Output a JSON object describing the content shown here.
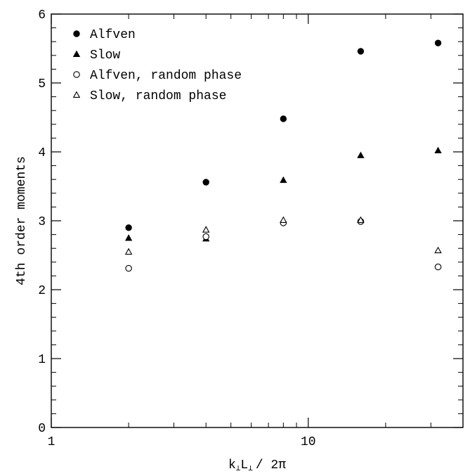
{
  "chart_data": {
    "type": "scatter",
    "xscale": "log",
    "xlim": [
      1,
      40
    ],
    "ylim": [
      0,
      6
    ],
    "grid": false,
    "legend_position": "top-left",
    "xlabel": {
      "k": "k",
      "sub1": "⊥",
      "L": "L",
      "sub2": "⊥",
      "rest": "/ 2π"
    },
    "ylabel": "4th order moments",
    "x_ticks": [
      {
        "value": 1,
        "label": "1"
      },
      {
        "value": 10,
        "label": "10"
      }
    ],
    "y_ticks": [
      {
        "value": 0,
        "label": "0"
      },
      {
        "value": 1,
        "label": "1"
      },
      {
        "value": 2,
        "label": "2"
      },
      {
        "value": 3,
        "label": "3"
      },
      {
        "value": 4,
        "label": "4"
      },
      {
        "value": 5,
        "label": "5"
      },
      {
        "value": 6,
        "label": "6"
      }
    ],
    "series": [
      {
        "name": "Alfven",
        "marker": "filled-circle",
        "x": [
          2,
          4,
          8,
          16,
          32
        ],
        "y": [
          2.9,
          3.56,
          4.48,
          5.46,
          5.58
        ]
      },
      {
        "name": "Slow",
        "marker": "filled-triangle",
        "x": [
          2,
          4,
          8,
          16,
          32
        ],
        "y": [
          2.75,
          2.74,
          3.59,
          3.95,
          4.02
        ]
      },
      {
        "name": "Alfven, random phase",
        "marker": "open-circle",
        "x": [
          2,
          4,
          8,
          16,
          32
        ],
        "y": [
          2.31,
          2.77,
          2.97,
          2.99,
          2.33
        ]
      },
      {
        "name": "Slow, random phase",
        "marker": "open-triangle",
        "x": [
          2,
          4,
          8,
          16,
          32
        ],
        "y": [
          2.55,
          2.87,
          3.01,
          3.01,
          2.57
        ]
      }
    ]
  }
}
